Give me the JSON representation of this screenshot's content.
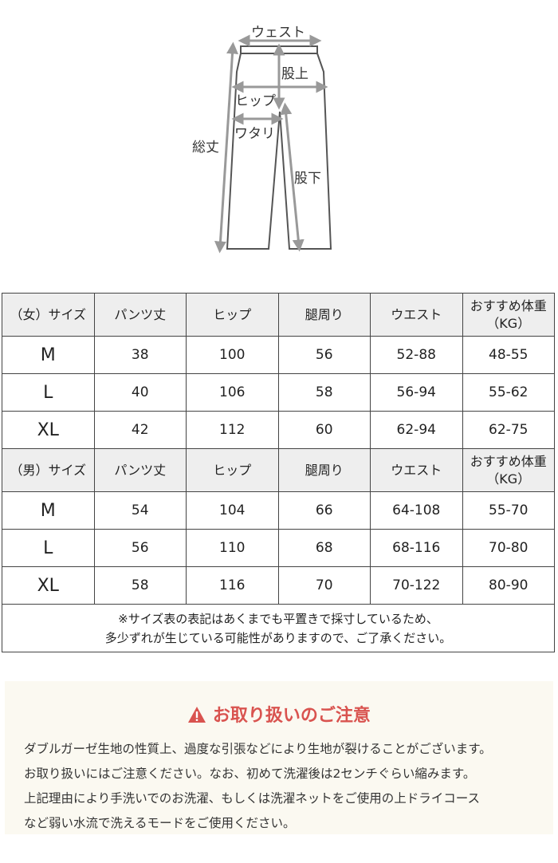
{
  "diagram": {
    "labels": {
      "waist": "ウェスト",
      "rise": "股上",
      "hip": "ヒップ",
      "thigh": "ワタリ",
      "total_length": "総丈",
      "inseam": "股下"
    }
  },
  "women": {
    "header": [
      "（女）サイズ",
      "パンツ丈",
      "ヒップ",
      "腿周り",
      "ウエスト",
      "おすすめ体重\n（KG）"
    ],
    "rows": [
      [
        "M",
        "38",
        "100",
        "56",
        "52-88",
        "48-55"
      ],
      [
        "L",
        "40",
        "106",
        "58",
        "56-94",
        "55-62"
      ],
      [
        "XL",
        "42",
        "112",
        "60",
        "62-94",
        "62-75"
      ]
    ]
  },
  "men": {
    "header": [
      "（男）サイズ",
      "パンツ丈",
      "ヒップ",
      "腿周り",
      "ウエスト",
      "おすすめ体重\n（KG）"
    ],
    "rows": [
      [
        "M",
        "54",
        "104",
        "66",
        "64-108",
        "55-70"
      ],
      [
        "L",
        "56",
        "110",
        "68",
        "68-116",
        "70-80"
      ],
      [
        "XL",
        "58",
        "116",
        "70",
        "70-122",
        "80-90"
      ]
    ]
  },
  "table_note": [
    "※サイズ表の表記はあくまでも平置きで採寸しているため、",
    "多少ずれが生じている可能性がありますので、ご了承ください。"
  ],
  "notice": {
    "icon": "warning-icon",
    "title": "お取り扱いのご注意",
    "color": "#d9534f",
    "lines": [
      "ダブルガーゼ生地の性質上、過度な引張などにより生地が裂けることがございます。",
      "お取り扱いにはご注意ください。なお、初めて洗濯後は2センチぐらい縮みます。",
      "上記理由により手洗いでのお洗濯、もしくは洗濯ネットをご使用の上ドライコース",
      "など弱い水流で洗えるモードをご使用ください。"
    ]
  }
}
